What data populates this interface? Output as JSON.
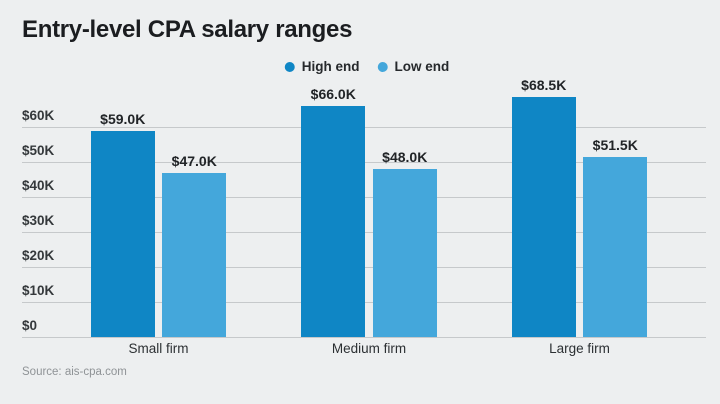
{
  "title": "Entry-level CPA salary ranges",
  "source": "Source: ais-cpa.com",
  "legend": [
    {
      "label": "High end",
      "color": "#0f86c5"
    },
    {
      "label": "Low end",
      "color": "#44a7db"
    }
  ],
  "chart_data": {
    "type": "bar",
    "title": "Entry-level CPA salary ranges",
    "categories": [
      "Small firm",
      "Medium firm",
      "Large firm"
    ],
    "series": [
      {
        "name": "High end",
        "color": "#0f86c5",
        "values": [
          59.0,
          66.0,
          68.5
        ],
        "labels": [
          "$59.0K",
          "$66.0K",
          "$68.5K"
        ]
      },
      {
        "name": "Low end",
        "color": "#44a7db",
        "values": [
          47.0,
          48.0,
          51.5
        ],
        "labels": [
          "$47.0K",
          "$48.0K",
          "$51.5K"
        ]
      }
    ],
    "xlabel": "",
    "ylabel": "",
    "ylim": [
      0,
      70
    ],
    "yticks": [
      {
        "value": 0,
        "label": "$0"
      },
      {
        "value": 10,
        "label": "$10K"
      },
      {
        "value": 20,
        "label": "$20K"
      },
      {
        "value": 30,
        "label": "$30K"
      },
      {
        "value": 40,
        "label": "$40K"
      },
      {
        "value": 50,
        "label": "$50K"
      },
      {
        "value": 60,
        "label": "$60K"
      }
    ],
    "grid": true,
    "legend_position": "top-center",
    "source": "Source: ais-cpa.com"
  }
}
